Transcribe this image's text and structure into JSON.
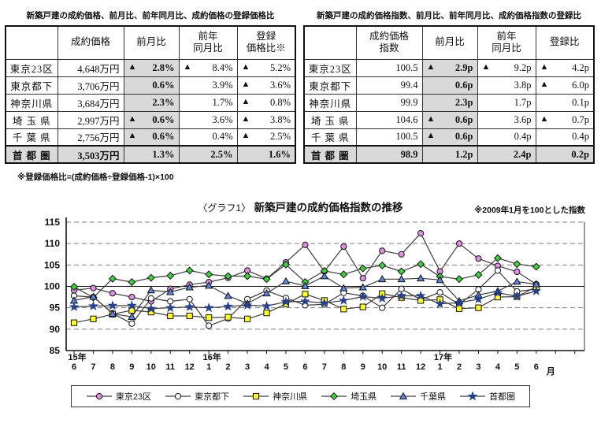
{
  "left_table": {
    "title": "新築戸建の成約価格、前月比、前年同月比、成約価格の登録価格比",
    "headers": [
      "",
      "成約価格",
      "前月比",
      "前年\n同月比",
      "登録\n価格比※"
    ],
    "rows": [
      {
        "label": "東京23区",
        "total": false,
        "cells": [
          {
            "text": "4,648万円",
            "neg": false
          },
          {
            "text": "2.8%",
            "neg": true
          },
          {
            "text": "8.4%",
            "neg": true
          },
          {
            "text": "5.2%",
            "neg": true
          }
        ]
      },
      {
        "label": "東京都下",
        "total": false,
        "cells": [
          {
            "text": "3,706万円",
            "neg": false
          },
          {
            "text": "0.6%",
            "neg": false
          },
          {
            "text": "3.9%",
            "neg": false
          },
          {
            "text": "3.6%",
            "neg": true
          }
        ]
      },
      {
        "label": "神奈川県",
        "total": false,
        "cells": [
          {
            "text": "3,684万円",
            "neg": false
          },
          {
            "text": "2.3%",
            "neg": false
          },
          {
            "text": "1.7%",
            "neg": false
          },
          {
            "text": "0.8%",
            "neg": true
          }
        ]
      },
      {
        "label": "埼 玉 県",
        "total": false,
        "cells": [
          {
            "text": "2,997万円",
            "neg": false
          },
          {
            "text": "0.6%",
            "neg": true
          },
          {
            "text": "3.6%",
            "neg": false
          },
          {
            "text": "3.8%",
            "neg": true
          }
        ]
      },
      {
        "label": "千 葉 県",
        "total": false,
        "cells": [
          {
            "text": "2,756万円",
            "neg": false
          },
          {
            "text": "0.6%",
            "neg": true
          },
          {
            "text": "0.4%",
            "neg": false
          },
          {
            "text": "2.5%",
            "neg": true
          }
        ]
      },
      {
        "label": "首 都 圏",
        "total": true,
        "cells": [
          {
            "text": "3,503万円",
            "neg": false
          },
          {
            "text": "1.3%",
            "neg": false
          },
          {
            "text": "2.5%",
            "neg": false
          },
          {
            "text": "1.6%",
            "neg": false
          }
        ]
      }
    ],
    "footnote": "※登録価格比=(成約価格÷登録価格-1)×100"
  },
  "right_table": {
    "title": "新築戸建の成約価格指数、前月比、前年同月比、成約価格指数の登録比",
    "headers": [
      "",
      "成約価格\n指数",
      "前月比",
      "前年\n同月比",
      "登録比"
    ],
    "rows": [
      {
        "label": "東京23区",
        "total": false,
        "cells": [
          {
            "text": "100.5",
            "neg": false
          },
          {
            "text": "2.9p",
            "neg": true
          },
          {
            "text": "9.2p",
            "neg": true
          },
          {
            "text": "4.2p",
            "neg": true
          }
        ]
      },
      {
        "label": "東京都下",
        "total": false,
        "cells": [
          {
            "text": "99.4",
            "neg": false
          },
          {
            "text": "0.6p",
            "neg": false
          },
          {
            "text": "3.8p",
            "neg": false
          },
          {
            "text": "6.0p",
            "neg": true
          }
        ]
      },
      {
        "label": "神奈川県",
        "total": false,
        "cells": [
          {
            "text": "99.9",
            "neg": false
          },
          {
            "text": "2.3p",
            "neg": false
          },
          {
            "text": "1.7p",
            "neg": false
          },
          {
            "text": "0.1p",
            "neg": false
          }
        ]
      },
      {
        "label": "埼 玉 県",
        "total": false,
        "cells": [
          {
            "text": "104.6",
            "neg": false
          },
          {
            "text": "0.6p",
            "neg": true
          },
          {
            "text": "3.6p",
            "neg": false
          },
          {
            "text": "0.7p",
            "neg": true
          }
        ]
      },
      {
        "label": "千 葉 県",
        "total": false,
        "cells": [
          {
            "text": "100.5",
            "neg": false
          },
          {
            "text": "0.6p",
            "neg": true
          },
          {
            "text": "0.4p",
            "neg": false
          },
          {
            "text": "0.4p",
            "neg": false
          }
        ]
      },
      {
        "label": "首 都 圏",
        "total": true,
        "cells": [
          {
            "text": "98.9",
            "neg": false
          },
          {
            "text": "1.2p",
            "neg": false
          },
          {
            "text": "2.4p",
            "neg": false
          },
          {
            "text": "0.2p",
            "neg": false
          }
        ]
      }
    ]
  },
  "chart_data": {
    "type": "line",
    "title_prefix": "〈グラフ1〉",
    "title": "新築戸建の成約価格指数の推移",
    "note": "※2009年1月を100とした指数",
    "ylim": [
      85,
      115
    ],
    "ytick_step": 5,
    "baseline_value": 100,
    "unit_label": "月",
    "month_labels": [
      "6",
      "7",
      "8",
      "9",
      "10",
      "11",
      "12",
      "1",
      "2",
      "3",
      "4",
      "5",
      "6",
      "7",
      "8",
      "9",
      "10",
      "11",
      "12",
      "1",
      "2",
      "3",
      "4",
      "5",
      "6"
    ],
    "year_marks": [
      {
        "index": 0,
        "label": "15年"
      },
      {
        "index": 7,
        "label": "16年"
      },
      {
        "index": 19,
        "label": "17年"
      }
    ],
    "grid_color": "#7d7d7d",
    "line_color": "#3c3c3c",
    "series": [
      {
        "name": "東京23区",
        "marker": "circle",
        "color": "#df8fdf",
        "values": [
          99.1,
          99.6,
          98.4,
          97.5,
          96.5,
          99.4,
          100.4,
          101.0,
          102.0,
          103.7,
          101.8,
          105.6,
          109.7,
          103.5,
          109.3,
          101.9,
          108.3,
          107.5,
          112.4,
          103.5,
          110.0,
          106.5,
          104.8,
          103.4,
          100.5
        ]
      },
      {
        "name": "東京都下",
        "marker": "circle-open",
        "color": "#ffffff",
        "values": [
          97.8,
          97.5,
          93.7,
          91.3,
          97.2,
          96.5,
          97.0,
          90.8,
          92.5,
          97.0,
          99.0,
          97.3,
          95.6,
          95.8,
          98.5,
          97.8,
          95.0,
          99.4,
          96.9,
          98.6,
          95.8,
          99.3,
          103.7,
          98.8,
          99.4
        ]
      },
      {
        "name": "神奈川県",
        "marker": "square",
        "color": "#ffff2e",
        "values": [
          91.5,
          92.4,
          93.5,
          94.4,
          94.0,
          93.1,
          93.1,
          92.7,
          92.8,
          92.4,
          93.8,
          95.9,
          98.2,
          96.7,
          94.7,
          95.2,
          98.3,
          97.4,
          96.7,
          96.9,
          94.8,
          95.0,
          97.5,
          97.6,
          99.9
        ]
      },
      {
        "name": "埼玉県",
        "marker": "diamond",
        "color": "#3fd23f",
        "values": [
          99.9,
          97.4,
          101.8,
          101.0,
          102.0,
          102.5,
          103.7,
          102.8,
          102.4,
          102.4,
          101.7,
          105.1,
          101.0,
          103.6,
          102.8,
          104.2,
          104.9,
          103.5,
          105.2,
          102.3,
          101.7,
          102.7,
          106.6,
          105.2,
          104.6
        ]
      },
      {
        "name": "千葉県",
        "marker": "triangle",
        "color": "#5f86e0",
        "values": [
          96.7,
          97.6,
          93.6,
          92.9,
          99.1,
          98.7,
          99.8,
          100.2,
          97.8,
          96.0,
          98.4,
          101.2,
          100.1,
          102.4,
          99.6,
          99.8,
          101.7,
          101.7,
          101.9,
          101.5,
          96.6,
          98.0,
          98.9,
          101.1,
          100.5
        ]
      },
      {
        "name": "首都圏",
        "marker": "star",
        "color": "#27418e",
        "values": [
          95.2,
          95.4,
          95.5,
          95.5,
          94.8,
          95.0,
          95.2,
          95.0,
          95.3,
          95.6,
          95.4,
          96.4,
          96.5,
          96.1,
          96.7,
          97.6,
          97.2,
          97.8,
          97.8,
          95.9,
          96.2,
          97.0,
          98.5,
          97.7,
          98.9
        ]
      }
    ]
  }
}
